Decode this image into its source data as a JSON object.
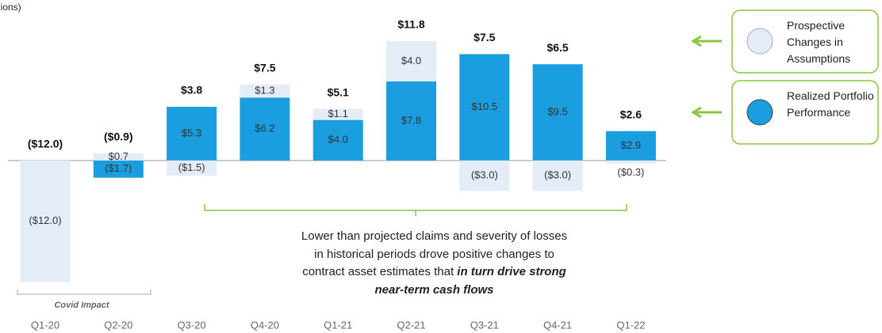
{
  "chart_data": {
    "type": "bar",
    "stacked": true,
    "y_label": "lions)",
    "categories": [
      "Q1-20",
      "Q2-20",
      "Q3-20",
      "Q4-20",
      "Q1-21",
      "Q2-21",
      "Q3-21",
      "Q4-21",
      "Q1-22"
    ],
    "series": [
      {
        "name": "Realized Portfolio Performance",
        "color": "#1a9ee0",
        "values": [
          null,
          -1.7,
          5.3,
          6.2,
          4.0,
          7.8,
          10.5,
          9.5,
          2.9
        ],
        "value_labels": [
          null,
          "($1.7)",
          "$5.3",
          "$6.2",
          "$4.0",
          "$7.8",
          "$10.5",
          "$9.5",
          "$2.9"
        ]
      },
      {
        "name": "Prospective Changes in Assumptions",
        "color": "#e4edf7",
        "values": [
          -12.0,
          0.7,
          -1.5,
          1.3,
          1.1,
          4.0,
          -3.0,
          -3.0,
          -0.3
        ],
        "value_labels": [
          "($12.0)",
          "$0.7",
          "($1.5)",
          "$1.3",
          "$1.1",
          "$4.0",
          "($3.0)",
          "($3.0)",
          "($0.3)"
        ]
      }
    ],
    "totals": {
      "values": [
        -12.0,
        -0.9,
        3.8,
        7.5,
        5.1,
        11.8,
        7.5,
        6.5,
        2.6
      ],
      "value_labels": [
        "($12.0)",
        "($0.9)",
        "$3.8",
        "$7.5",
        "$5.1",
        "$11.8",
        "$7.5",
        "$6.5",
        "$2.6"
      ]
    },
    "ylim": [
      -12.5,
      13.5
    ],
    "annotations": {
      "covid": "Covid Impact",
      "note": "Lower than projected claims and severity of losses in historical periods drove positive changes to contract asset estimates that ",
      "note_emphasis": "in turn drive strong near-term cash flows"
    }
  }
}
